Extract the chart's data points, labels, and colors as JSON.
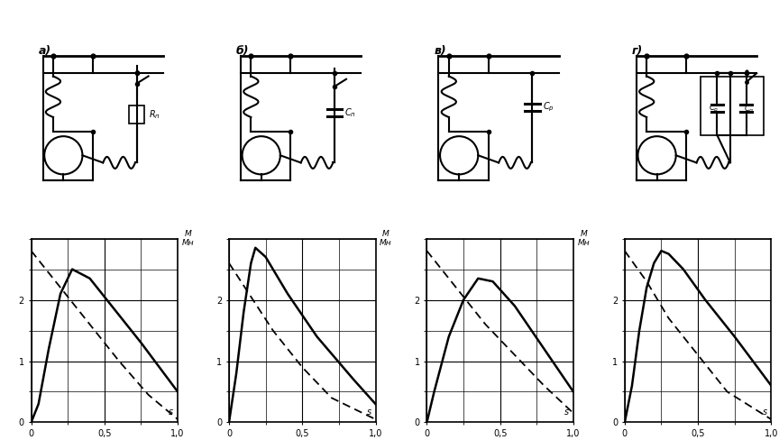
{
  "panel_labels": [
    "а)",
    "б)",
    "в)",
    "г)"
  ],
  "charts": [
    {
      "main_curve": [
        [
          0,
          0
        ],
        [
          0.05,
          0.3
        ],
        [
          0.12,
          1.2
        ],
        [
          0.2,
          2.1
        ],
        [
          0.28,
          2.5
        ],
        [
          0.4,
          2.35
        ],
        [
          0.55,
          1.9
        ],
        [
          0.75,
          1.3
        ],
        [
          1.0,
          0.5
        ]
      ],
      "aux_curve": [
        [
          0,
          2.8
        ],
        [
          0.2,
          2.2
        ],
        [
          0.4,
          1.6
        ],
        [
          0.6,
          1.0
        ],
        [
          0.8,
          0.45
        ],
        [
          1.0,
          0.05
        ]
      ]
    },
    {
      "main_curve": [
        [
          0,
          0
        ],
        [
          0.05,
          0.8
        ],
        [
          0.1,
          1.8
        ],
        [
          0.15,
          2.6
        ],
        [
          0.18,
          2.85
        ],
        [
          0.25,
          2.7
        ],
        [
          0.4,
          2.1
        ],
        [
          0.6,
          1.4
        ],
        [
          0.85,
          0.7
        ],
        [
          1.0,
          0.3
        ]
      ],
      "aux_curve": [
        [
          0,
          2.6
        ],
        [
          0.15,
          2.05
        ],
        [
          0.3,
          1.5
        ],
        [
          0.5,
          0.9
        ],
        [
          0.7,
          0.4
        ],
        [
          1.0,
          0.05
        ]
      ]
    },
    {
      "main_curve": [
        [
          0,
          0
        ],
        [
          0.05,
          0.5
        ],
        [
          0.15,
          1.4
        ],
        [
          0.25,
          2.0
        ],
        [
          0.35,
          2.35
        ],
        [
          0.45,
          2.3
        ],
        [
          0.6,
          1.9
        ],
        [
          0.8,
          1.2
        ],
        [
          1.0,
          0.5
        ]
      ],
      "aux_curve": [
        [
          0,
          2.8
        ],
        [
          0.2,
          2.2
        ],
        [
          0.4,
          1.6
        ],
        [
          0.6,
          1.1
        ],
        [
          0.8,
          0.6
        ],
        [
          1.0,
          0.15
        ]
      ]
    },
    {
      "main_curve": [
        [
          0,
          0
        ],
        [
          0.05,
          0.6
        ],
        [
          0.1,
          1.5
        ],
        [
          0.15,
          2.2
        ],
        [
          0.2,
          2.6
        ],
        [
          0.25,
          2.8
        ],
        [
          0.3,
          2.75
        ],
        [
          0.4,
          2.5
        ],
        [
          0.55,
          2.0
        ],
        [
          0.75,
          1.4
        ],
        [
          1.0,
          0.6
        ]
      ],
      "aux_curve": [
        [
          0,
          2.8
        ],
        [
          0.15,
          2.3
        ],
        [
          0.3,
          1.7
        ],
        [
          0.5,
          1.1
        ],
        [
          0.7,
          0.5
        ],
        [
          1.0,
          0.05
        ]
      ]
    }
  ]
}
